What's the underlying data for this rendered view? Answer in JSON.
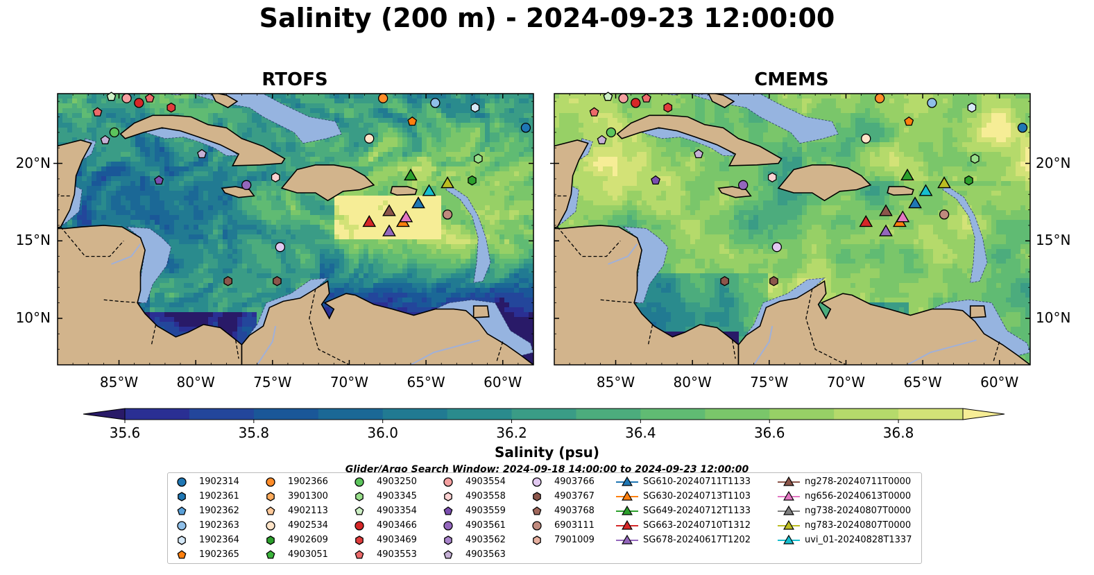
{
  "title": "Salinity (200 m) - 2024-09-23 12:00:00",
  "panels": [
    {
      "title": "RTOFS",
      "scheme": "rtofs"
    },
    {
      "title": "CMEMS",
      "scheme": "cmems"
    }
  ],
  "map": {
    "lon_range": [
      -89,
      -58
    ],
    "lat_range": [
      7,
      24.5
    ],
    "x_ticks": [
      {
        "lon": -85,
        "label": "85°W"
      },
      {
        "lon": -80,
        "label": "80°W"
      },
      {
        "lon": -75,
        "label": "75°W"
      },
      {
        "lon": -70,
        "label": "70°W"
      },
      {
        "lon": -65,
        "label": "65°W"
      },
      {
        "lon": -60,
        "label": "60°W"
      }
    ],
    "y_ticks": [
      {
        "lat": 20,
        "label": "20°N"
      },
      {
        "lat": 15,
        "label": "15°N"
      },
      {
        "lat": 10,
        "label": "10°N"
      }
    ],
    "land_color": "#d2b48c",
    "shelf_color": "#96b4e0"
  },
  "colorbar": {
    "label": "Salinity (psu)",
    "min": 35.5,
    "max": 36.9,
    "colors": [
      "#291a68",
      "#2a2f93",
      "#23469b",
      "#1a5798",
      "#1b6896",
      "#217a92",
      "#2a8b8d",
      "#3a9c86",
      "#4cac7d",
      "#60bb73",
      "#7ac66a",
      "#97d066",
      "#b5da6b",
      "#d3e277",
      "#f6ed96"
    ],
    "ticks": [
      35.6,
      35.8,
      36.0,
      36.2,
      36.4,
      36.6,
      36.8
    ],
    "tick_labels": [
      "35.6",
      "35.8",
      "36.0",
      "36.2",
      "36.4",
      "36.6",
      "36.8"
    ]
  },
  "search_window": "Glider/Argo Search Window: 2024-09-18 14:00:00 to 2024-09-23 12:00:00",
  "legend": {
    "argo": [
      {
        "label": "1902314",
        "marker": "circle",
        "color": "#1f77b4"
      },
      {
        "label": "1902361",
        "marker": "hexagon",
        "color": "#1f77b4"
      },
      {
        "label": "1902362",
        "marker": "pentagon",
        "color": "#5aa0d8"
      },
      {
        "label": "1902363",
        "marker": "circle",
        "color": "#8fbfe8"
      },
      {
        "label": "1902364",
        "marker": "hexagon",
        "color": "#d6e9f8"
      },
      {
        "label": "1902365",
        "marker": "pentagon",
        "color": "#ff7f0e"
      },
      {
        "label": "1902366",
        "marker": "circle",
        "color": "#ff8c29"
      },
      {
        "label": "3901300",
        "marker": "hexagon",
        "color": "#ffac5c"
      },
      {
        "label": "4902113",
        "marker": "pentagon",
        "color": "#ffc99a"
      },
      {
        "label": "4902534",
        "marker": "circle",
        "color": "#ffe4c8"
      },
      {
        "label": "4902609",
        "marker": "hexagon",
        "color": "#2ca02c"
      },
      {
        "label": "4903051",
        "marker": "pentagon",
        "color": "#3cb43c"
      },
      {
        "label": "4903250",
        "marker": "circle",
        "color": "#5cc45c"
      },
      {
        "label": "4903345",
        "marker": "hexagon",
        "color": "#98df8a"
      },
      {
        "label": "4903354",
        "marker": "pentagon",
        "color": "#cdf0c5"
      },
      {
        "label": "4903466",
        "marker": "circle",
        "color": "#d62728"
      },
      {
        "label": "4903469",
        "marker": "hexagon",
        "color": "#e03c3c"
      },
      {
        "label": "4903553",
        "marker": "pentagon",
        "color": "#ec6a6a"
      },
      {
        "label": "4903554",
        "marker": "circle",
        "color": "#f4a0a0"
      },
      {
        "label": "4903558",
        "marker": "hexagon",
        "color": "#fcd2d2"
      },
      {
        "label": "4903559",
        "marker": "pentagon",
        "color": "#7b4fb0"
      },
      {
        "label": "4903561",
        "marker": "circle",
        "color": "#9467bd"
      },
      {
        "label": "4903562",
        "marker": "hexagon",
        "color": "#a984cc"
      },
      {
        "label": "4903563",
        "marker": "pentagon",
        "color": "#c5b0d5"
      },
      {
        "label": "4903766",
        "marker": "circle",
        "color": "#e1c8f0"
      },
      {
        "label": "4903767",
        "marker": "hexagon",
        "color": "#8c564b"
      },
      {
        "label": "4903768",
        "marker": "pentagon",
        "color": "#a0685c"
      },
      {
        "label": "6903111",
        "marker": "circle",
        "color": "#c08a7e"
      },
      {
        "label": "7901009",
        "marker": "hexagon",
        "color": "#e6b0a0"
      }
    ],
    "gliders": [
      {
        "label": "SG610-20240711T1133",
        "color": "#1f77b4"
      },
      {
        "label": "SG630-20240713T1103",
        "color": "#ff7f0e"
      },
      {
        "label": "SG649-20240712T1133",
        "color": "#2ca02c"
      },
      {
        "label": "SG663-20240710T1312",
        "color": "#d62728"
      },
      {
        "label": "SG678-20240617T1202",
        "color": "#9467bd"
      },
      {
        "label": "ng278-20240711T0000",
        "color": "#8c564b"
      },
      {
        "label": "ng656-20240613T0000",
        "color": "#e377c2"
      },
      {
        "label": "ng738-20240807T0000",
        "color": "#7f7f7f"
      },
      {
        "label": "ng783-20240807T0000",
        "color": "#bcbd22"
      },
      {
        "label": "uvi_01-20240828T1337",
        "color": "#17becf"
      }
    ]
  },
  "map_points": [
    {
      "type": "argo",
      "label": "1902314",
      "lon": -58.5,
      "lat": 22.3
    },
    {
      "type": "argo",
      "label": "1902363",
      "lon": -64.4,
      "lat": 23.9
    },
    {
      "type": "argo",
      "label": "1902364",
      "lon": -61.8,
      "lat": 23.6
    },
    {
      "type": "argo",
      "label": "1902365",
      "lon": -65.9,
      "lat": 22.7
    },
    {
      "type": "argo",
      "label": "1902366",
      "lon": -67.8,
      "lat": 24.2
    },
    {
      "type": "argo",
      "label": "4903354",
      "lon": -85.5,
      "lat": 24.3
    },
    {
      "type": "argo",
      "label": "4903554",
      "lon": -84.5,
      "lat": 24.2
    },
    {
      "type": "argo",
      "label": "4903466",
      "lon": -83.7,
      "lat": 23.9
    },
    {
      "type": "argo",
      "label": "4903553",
      "lon": -83.0,
      "lat": 24.2
    },
    {
      "type": "argo",
      "label": "4903469",
      "lon": -81.6,
      "lat": 23.6
    },
    {
      "type": "argo",
      "label": "4903553",
      "lon": -86.4,
      "lat": 23.3
    },
    {
      "type": "argo",
      "label": "4903250",
      "lon": -85.3,
      "lat": 22.0
    },
    {
      "type": "argo",
      "label": "4903563",
      "lon": -85.9,
      "lat": 21.5
    },
    {
      "type": "argo",
      "label": "4902534",
      "lon": -68.7,
      "lat": 21.6
    },
    {
      "type": "argo",
      "label": "4903345",
      "lon": -61.6,
      "lat": 20.3
    },
    {
      "type": "argo",
      "label": "4903563",
      "lon": -79.6,
      "lat": 20.6
    },
    {
      "type": "argo",
      "label": "4903558",
      "lon": -74.8,
      "lat": 19.1
    },
    {
      "type": "argo",
      "label": "4903561",
      "lon": -76.7,
      "lat": 18.6
    },
    {
      "type": "argo",
      "label": "4903559",
      "lon": -82.4,
      "lat": 18.9
    },
    {
      "type": "argo",
      "label": "4902609",
      "lon": -62.0,
      "lat": 18.9
    },
    {
      "type": "argo",
      "label": "6903111",
      "lon": -63.6,
      "lat": 16.7
    },
    {
      "type": "argo",
      "label": "4903766",
      "lon": -74.5,
      "lat": 14.6
    },
    {
      "type": "argo",
      "label": "4903767",
      "lon": -77.9,
      "lat": 12.4
    },
    {
      "type": "argo",
      "label": "4903767",
      "lon": -74.7,
      "lat": 12.4
    },
    {
      "type": "glider",
      "label": "SG663-20240710T1312",
      "lon": -68.7,
      "lat": 16.2
    },
    {
      "type": "glider",
      "label": "ng278-20240711T0000",
      "lon": -67.4,
      "lat": 16.9
    },
    {
      "type": "glider",
      "label": "SG678-20240617T1202",
      "lon": -67.4,
      "lat": 15.6
    },
    {
      "type": "glider",
      "label": "SG630-20240713T1103",
      "lon": -66.5,
      "lat": 16.2
    },
    {
      "type": "glider",
      "label": "ng656-20240613T0000",
      "lon": -66.3,
      "lat": 16.5
    },
    {
      "type": "glider",
      "label": "SG610-20240711T1133",
      "lon": -65.5,
      "lat": 17.4
    },
    {
      "type": "glider",
      "label": "SG649-20240712T1133",
      "lon": -66.0,
      "lat": 19.2
    },
    {
      "type": "glider",
      "label": "uvi_01-20240828T1337",
      "lon": -64.8,
      "lat": 18.2
    },
    {
      "type": "glider",
      "label": "ng783-20240807T0000",
      "lon": -63.6,
      "lat": 18.7
    }
  ]
}
